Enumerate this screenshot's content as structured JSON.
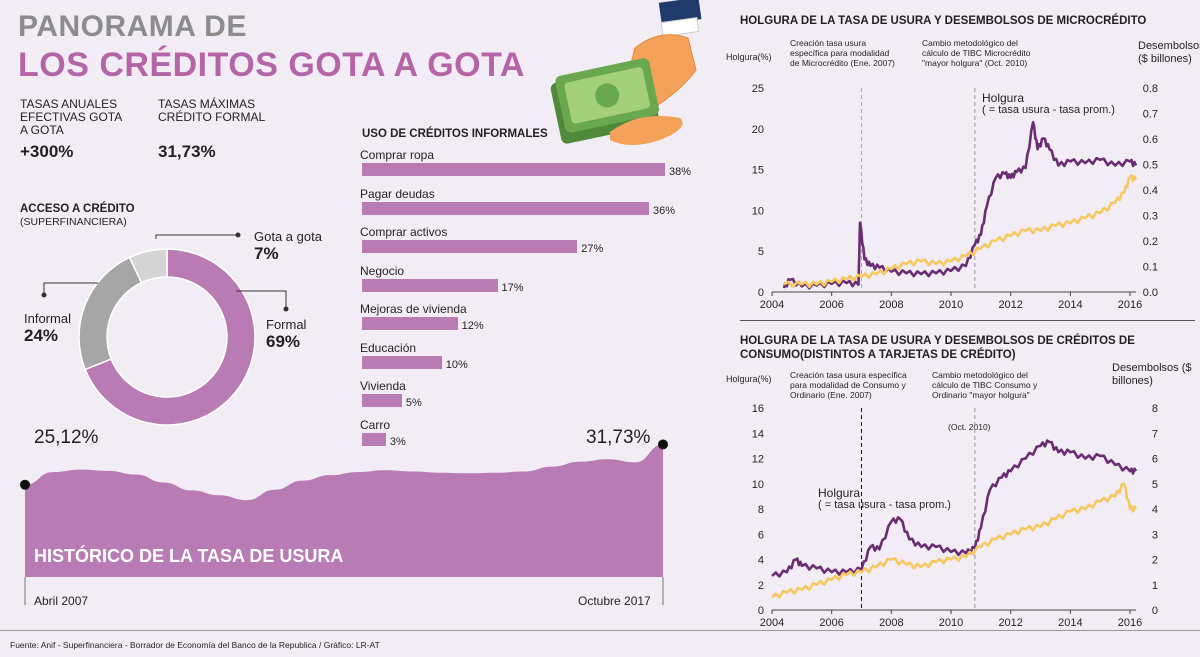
{
  "header": {
    "title_line1": "PANORAMA DE",
    "title_line2": "LOS CRÉDITOS GOTA A GOTA"
  },
  "stats": {
    "rate_label": "TASAS ANUALES EFECTIVAS GOTA A GOTA",
    "rate_value": "+300%",
    "max_label": "TASAS MÁXIMAS CRÉDITO FORMAL",
    "max_value": "31,73%"
  },
  "colors": {
    "purple": "#b87bb4",
    "dark_purple": "#6a2c72",
    "yellow": "#f6c85f",
    "gray": "#a6a6a6",
    "light_gray": "#d4d4d4"
  },
  "chart_data": [
    {
      "type": "pie",
      "title": "ACCESO A CRÉDITO",
      "subtitle": "(SUPERFINANCIERA)",
      "labels": [
        "Formal",
        "Informal",
        "Gota a gota"
      ],
      "values": [
        69,
        24,
        7
      ],
      "value_labels": [
        "69%",
        "24%",
        "7%"
      ]
    },
    {
      "type": "bar",
      "title": "USO DE CRÉDITOS INFORMALES",
      "categories": [
        "Comprar ropa",
        "Pagar deudas",
        "Comprar activos",
        "Negocio",
        "Mejoras de vivienda",
        "Educación",
        "Vivienda",
        "Carro"
      ],
      "values": [
        38,
        36,
        27,
        17,
        12,
        10,
        5,
        3
      ],
      "value_labels": [
        "38%",
        "36%",
        "27%",
        "17%",
        "12%",
        "10%",
        "5%",
        "3%"
      ]
    },
    {
      "type": "area",
      "title": "HISTÓRICO DE LA TASA DE USURA",
      "start_label": "Abril 2007",
      "end_label": "Octubre 2017",
      "start_value_label": "25,12%",
      "end_value_label": "31,73%",
      "values": [
        25.12,
        27.2,
        27.6,
        27.4,
        26.8,
        25.5,
        24.2,
        23.4,
        22.6,
        24.3,
        25.8,
        26.7,
        27.2,
        27.5,
        27.3,
        27.1,
        27.0,
        27.1,
        27.3,
        28.1,
        28.9,
        29.3,
        28.8,
        31.73
      ],
      "ylim": [
        10,
        30
      ]
    },
    {
      "type": "line",
      "title": "HOLGURA DE LA TASA DE USURA Y DESEMBOLSOS DE MICROCRÉDITO",
      "ylabel": "Holgura(%)",
      "ylabel_right": "Desembolsos ($ billones)",
      "x_ticks": [
        "2004",
        "2006",
        "2008",
        "2010",
        "2012",
        "2014",
        "2016"
      ],
      "y_ticks": [
        "0",
        "5",
        "10",
        "15",
        "20",
        "25"
      ],
      "y_right_ticks": [
        "0.0",
        "0.1",
        "0.2",
        "0.3",
        "0.4",
        "0.5",
        "0.6",
        "0.7",
        "0.8"
      ],
      "ylim": [
        0,
        25
      ],
      "ylim_right": [
        0,
        0.8
      ],
      "xlim": [
        2004,
        2016.2
      ],
      "annotation_1": "Creación tasa usura específica para modalidad de Microcrédito (Ene. 2007)",
      "annotation_2": "Cambio metodológico del cálculo de TIBC Microcrédito \"mayor holgura\" (Oct. 2010)",
      "series_label_1": "Holgura",
      "series_label_2": "( = tasa usura - tasa prom.)",
      "series": [
        {
          "name": "Holgura",
          "color": "#6a2c72",
          "x": [
            2004.4,
            2004.6,
            2005.0,
            2005.5,
            2006.0,
            2006.5,
            2006.9,
            2006.95,
            2007.1,
            2007.3,
            2007.6,
            2008.0,
            2008.5,
            2009.0,
            2009.5,
            2010.0,
            2010.5,
            2010.8,
            2011.0,
            2011.2,
            2011.5,
            2011.8,
            2012.0,
            2012.2,
            2012.5,
            2012.75,
            2012.9,
            2013.1,
            2013.3,
            2013.6,
            2014.0,
            2014.5,
            2015.0,
            2015.5,
            2016.0,
            2016.2
          ],
          "y": [
            0.5,
            1.5,
            0.7,
            0.8,
            1.0,
            1.1,
            0.9,
            8.5,
            4.0,
            3.2,
            3.0,
            2.5,
            2.3,
            2.2,
            2.3,
            2.6,
            3.2,
            5.8,
            7.0,
            10.5,
            14.0,
            14.5,
            14.0,
            14.7,
            15.2,
            20.8,
            17.5,
            18.8,
            17.5,
            15.5,
            16.0,
            15.8,
            16.2,
            15.5,
            16.0,
            15.5
          ]
        },
        {
          "name": "Desembolsos",
          "color": "#f6c85f",
          "x": [
            2004.4,
            2005.0,
            2005.5,
            2006.0,
            2006.5,
            2007.0,
            2007.5,
            2008.0,
            2008.5,
            2009.0,
            2009.5,
            2010.0,
            2010.5,
            2011.0,
            2011.5,
            2012.0,
            2012.5,
            2013.0,
            2013.5,
            2014.0,
            2014.5,
            2015.0,
            2015.5,
            2015.8,
            2016.0,
            2016.2
          ],
          "y": [
            0.03,
            0.03,
            0.03,
            0.04,
            0.05,
            0.06,
            0.07,
            0.09,
            0.11,
            0.12,
            0.11,
            0.12,
            0.14,
            0.17,
            0.2,
            0.22,
            0.24,
            0.24,
            0.26,
            0.27,
            0.29,
            0.31,
            0.35,
            0.39,
            0.45,
            0.44
          ]
        }
      ]
    },
    {
      "type": "line",
      "title": "HOLGURA DE LA TASA DE USURA Y DESEMBOLSOS DE CRÉDITOS DE CONSUMO(DISTINTOS A TARJETAS DE CRÉDITO)",
      "ylabel": "Holgura(%)",
      "ylabel_right": "Desembolsos ($ billones)",
      "x_ticks": [
        "2004",
        "2006",
        "2008",
        "2010",
        "2012",
        "2014",
        "2016"
      ],
      "y_ticks": [
        "0",
        "2",
        "4",
        "6",
        "8",
        "10",
        "12",
        "14",
        "16"
      ],
      "y_right_ticks": [
        "0",
        "1",
        "2",
        "3",
        "4",
        "5",
        "6",
        "7",
        "8"
      ],
      "ylim": [
        0,
        16
      ],
      "ylim_right": [
        0,
        8
      ],
      "xlim": [
        2004,
        2016.2
      ],
      "annotation_1": "Creación tasa usura específica para modalidad de Consumo y Ordinario (Ene. 2007)",
      "annotation_2": "Cambio metodológico del cálculo de TIBC Consumo y Ordinario \"mayor holgura\"",
      "annotation_2b": "(Oct. 2010)",
      "series_label_1": "Holgura",
      "series_label_2": "( = tasa usura - tasa prom.)",
      "series": [
        {
          "name": "Holgura",
          "color": "#6a2c72",
          "x": [
            2004.0,
            2004.5,
            2004.8,
            2005.0,
            2005.5,
            2006.0,
            2006.5,
            2007.0,
            2007.3,
            2007.6,
            2008.0,
            2008.3,
            2008.6,
            2009.0,
            2009.5,
            2010.0,
            2010.5,
            2010.8,
            2011.0,
            2011.3,
            2011.7,
            2012.0,
            2012.5,
            2013.0,
            2013.3,
            2013.6,
            2014.0,
            2014.5,
            2015.0,
            2015.5,
            2016.0,
            2016.2
          ],
          "y": [
            2.7,
            3.0,
            4.0,
            3.5,
            3.3,
            3.0,
            3.0,
            3.2,
            5.0,
            4.8,
            7.0,
            7.2,
            5.6,
            5.0,
            5.0,
            4.6,
            4.5,
            4.9,
            6.5,
            9.5,
            10.5,
            11.0,
            12.0,
            13.0,
            13.3,
            12.5,
            12.5,
            12.0,
            12.2,
            11.5,
            11.0,
            11.0
          ]
        },
        {
          "name": "Desembolsos",
          "color": "#f6c85f",
          "x": [
            2004.0,
            2004.5,
            2005.0,
            2005.5,
            2006.0,
            2006.5,
            2007.0,
            2007.5,
            2008.0,
            2008.5,
            2009.0,
            2009.5,
            2010.0,
            2010.5,
            2011.0,
            2011.5,
            2012.0,
            2012.5,
            2013.0,
            2013.5,
            2014.0,
            2014.5,
            2015.0,
            2015.5,
            2015.8,
            2016.0,
            2016.2
          ],
          "y": [
            0.5,
            0.7,
            0.8,
            1.0,
            1.2,
            1.4,
            1.5,
            1.7,
            2.0,
            1.8,
            1.7,
            1.9,
            2.0,
            2.1,
            2.5,
            2.8,
            3.0,
            3.2,
            3.3,
            3.6,
            3.9,
            4.0,
            4.3,
            4.5,
            5.0,
            4.0,
            4.0
          ]
        }
      ]
    }
  ],
  "footer": {
    "source": "Fuente: Anif - Superfinanciera - Borrador de Economía del Banco de la Republica / Gráfico: LR-AT"
  }
}
